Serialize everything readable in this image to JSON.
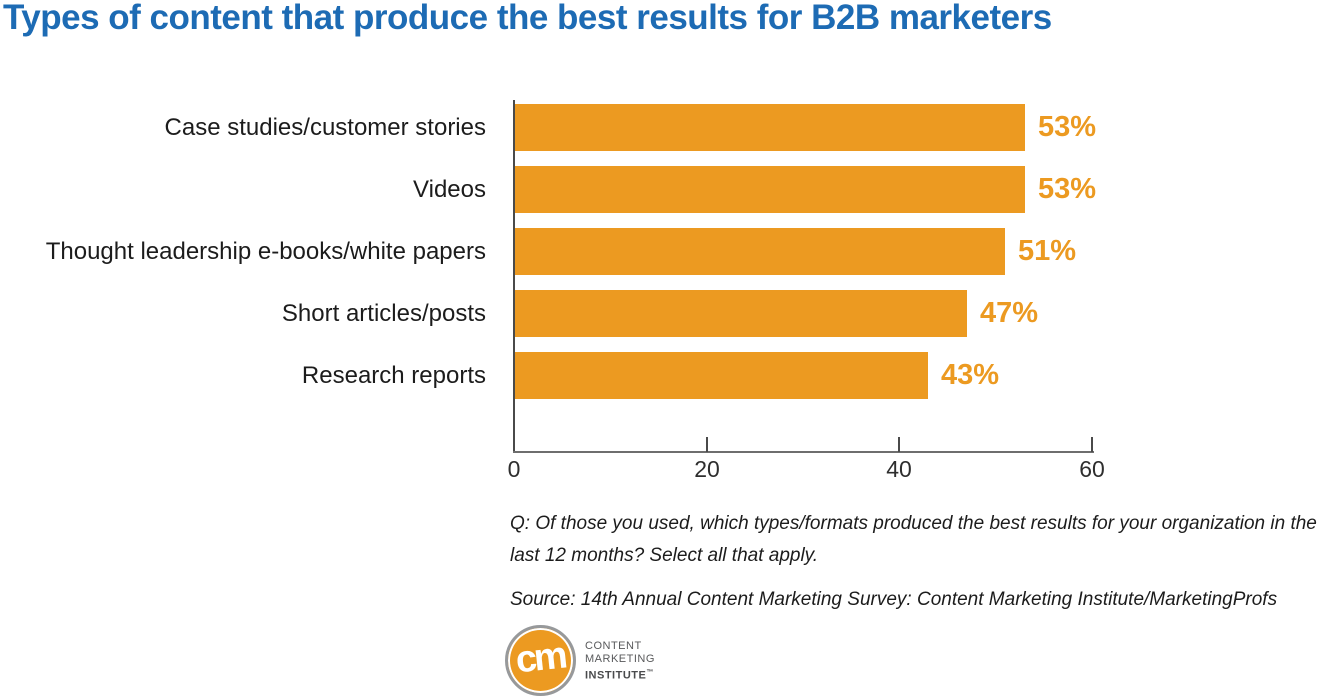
{
  "title": "Types of content that produce the best results for B2B marketers",
  "colors": {
    "title_blue": "#1D6BB4",
    "bar_orange": "#EC9A21",
    "axis_gray": "#4A4A4A",
    "text_dark": "#1C1C1C"
  },
  "chart_data": {
    "type": "bar",
    "orientation": "horizontal",
    "title": "Types of content that produce the best results for B2B marketers",
    "categories": [
      "Case studies/customer stories",
      "Videos",
      "Thought leadership e-books/white papers",
      "Short articles/posts",
      "Research reports"
    ],
    "values": [
      53,
      53,
      51,
      47,
      43
    ],
    "value_labels": [
      "53%",
      "53%",
      "51%",
      "47%",
      "43%"
    ],
    "xlim": [
      0,
      60
    ],
    "x_ticks": [
      0,
      20,
      40,
      60
    ],
    "x_tick_labels": [
      "0",
      "20",
      "40",
      "60"
    ],
    "xlabel": "",
    "ylabel": "",
    "grid": false,
    "legend": false,
    "bar_color": "#EC9A21",
    "value_label_color": "#EC9A21"
  },
  "footnotes": {
    "question": "Q: Of those you used, which types/formats produced the best results for your organization in the last 12 months? Select all that apply.",
    "source": "Source: 14th Annual Content Marketing Survey: Content Marketing Institute/MarketingProfs"
  },
  "logo": {
    "monogram": "cm",
    "line1": "CONTENT",
    "line2": "MARKETING",
    "line3": "INSTITUTE",
    "trademark": "™"
  }
}
